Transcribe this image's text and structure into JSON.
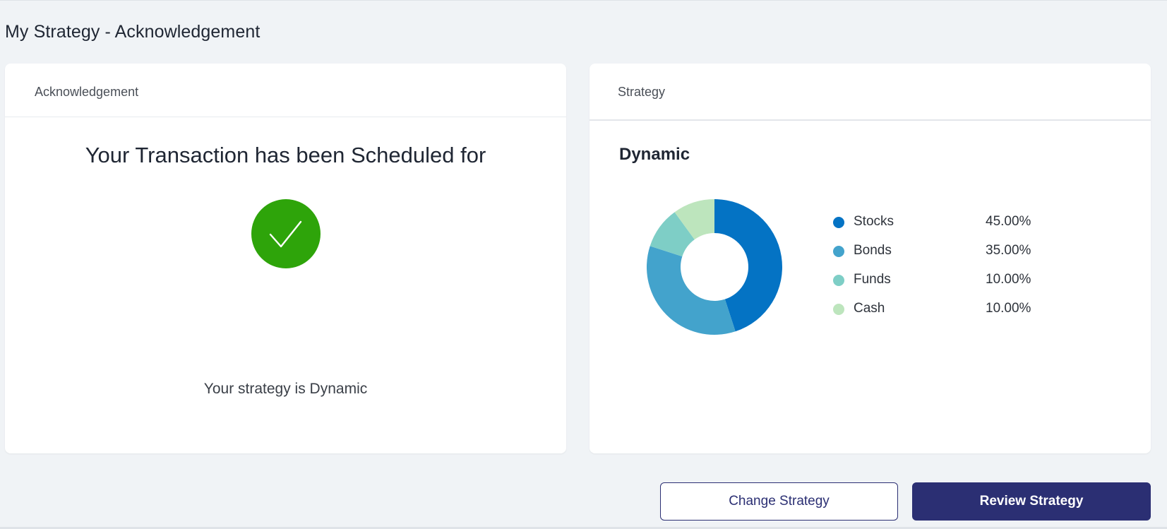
{
  "page": {
    "title": "My Strategy - Acknowledgement"
  },
  "acknowledgement_card": {
    "header": "Acknowledgement",
    "heading": "Your Transaction has been Scheduled for",
    "status_icon": "check-icon",
    "strategy_text": "Your strategy is Dynamic",
    "check_color": "#2ea40a"
  },
  "strategy_card": {
    "header": "Strategy",
    "strategy_name": "Dynamic",
    "legend": [
      {
        "name": "Stocks",
        "value": "45.00%",
        "color": "#0473c4"
      },
      {
        "name": "Bonds",
        "value": "35.00%",
        "color": "#43a3cc"
      },
      {
        "name": "Funds",
        "value": "10.00%",
        "color": "#7ecec6"
      },
      {
        "name": "Cash",
        "value": "10.00%",
        "color": "#bde5bd"
      }
    ]
  },
  "chart_data": {
    "type": "pie",
    "donut": true,
    "categories": [
      "Stocks",
      "Bonds",
      "Funds",
      "Cash"
    ],
    "values": [
      45,
      35,
      10,
      10
    ],
    "colors": [
      "#0473c4",
      "#43a3cc",
      "#7ecec6",
      "#bde5bd"
    ],
    "legend_placement": "right"
  },
  "actions": {
    "change_label": "Change Strategy",
    "review_label": "Review Strategy",
    "primary_color": "#2b2f73"
  }
}
